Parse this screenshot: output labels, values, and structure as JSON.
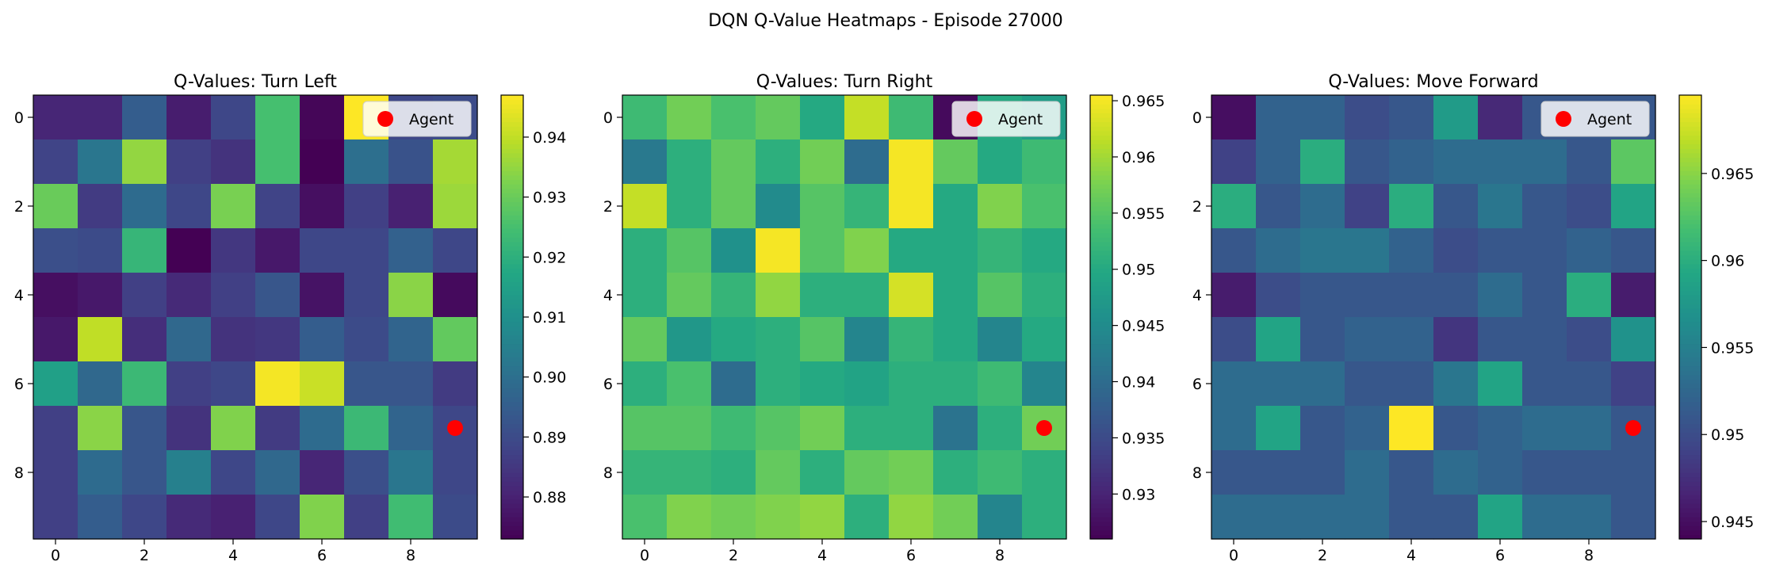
{
  "figure": {
    "suptitle": "DQN Q-Value Heatmaps - Episode 27000"
  },
  "chart_data": [
    {
      "type": "heatmap",
      "title": "Q-Values: Turn Left",
      "x_ticks": [
        0,
        2,
        4,
        6,
        8
      ],
      "y_ticks": [
        0,
        2,
        4,
        6,
        8
      ],
      "colormap": "viridis",
      "vmin": 0.873,
      "vmax": 0.947,
      "colorbar_ticks": [
        0.88,
        0.89,
        0.9,
        0.91,
        0.92,
        0.93,
        0.94
      ],
      "legend": {
        "label": "Agent",
        "position": "upper-right"
      },
      "agent": {
        "x": 9,
        "y": 7,
        "color": "#ff0000"
      },
      "values": [
        [
          0.881,
          0.881,
          0.895,
          0.879,
          0.889,
          0.925,
          0.874,
          0.947,
          0.889,
          0.89
        ],
        [
          0.888,
          0.902,
          0.935,
          0.887,
          0.884,
          0.925,
          0.873,
          0.9,
          0.892,
          0.937
        ],
        [
          0.93,
          0.886,
          0.899,
          0.889,
          0.932,
          0.888,
          0.876,
          0.887,
          0.88,
          0.936
        ],
        [
          0.891,
          0.89,
          0.922,
          0.873,
          0.885,
          0.878,
          0.889,
          0.889,
          0.896,
          0.889
        ],
        [
          0.876,
          0.878,
          0.887,
          0.882,
          0.887,
          0.893,
          0.877,
          0.889,
          0.934,
          0.875
        ],
        [
          0.878,
          0.94,
          0.883,
          0.898,
          0.884,
          0.885,
          0.895,
          0.89,
          0.897,
          0.929
        ],
        [
          0.915,
          0.898,
          0.923,
          0.887,
          0.889,
          0.946,
          0.941,
          0.893,
          0.893,
          0.886
        ],
        [
          0.887,
          0.934,
          0.893,
          0.884,
          0.933,
          0.886,
          0.899,
          0.923,
          0.897,
          0.889
        ],
        [
          0.887,
          0.899,
          0.893,
          0.905,
          0.889,
          0.898,
          0.881,
          0.891,
          0.902,
          0.889
        ],
        [
          0.887,
          0.895,
          0.889,
          0.882,
          0.88,
          0.889,
          0.933,
          0.887,
          0.924,
          0.89
        ]
      ]
    },
    {
      "type": "heatmap",
      "title": "Q-Values: Turn Right",
      "x_ticks": [
        0,
        2,
        4,
        6,
        8
      ],
      "y_ticks": [
        0,
        2,
        4,
        6,
        8
      ],
      "colormap": "viridis",
      "vmin": 0.926,
      "vmax": 0.9655,
      "colorbar_ticks": [
        0.93,
        0.935,
        0.94,
        0.945,
        0.95,
        0.955,
        0.96,
        0.965
      ],
      "legend": {
        "label": "Agent",
        "position": "upper-right"
      },
      "agent": {
        "x": 9,
        "y": 7,
        "color": "#ff0000"
      },
      "values": [
        [
          0.953,
          0.957,
          0.954,
          0.956,
          0.95,
          0.962,
          0.953,
          0.927,
          0.95,
          0.948
        ],
        [
          0.942,
          0.951,
          0.956,
          0.951,
          0.957,
          0.94,
          0.965,
          0.956,
          0.95,
          0.953
        ],
        [
          0.962,
          0.951,
          0.956,
          0.945,
          0.955,
          0.952,
          0.965,
          0.95,
          0.958,
          0.954
        ],
        [
          0.951,
          0.955,
          0.946,
          0.965,
          0.955,
          0.958,
          0.95,
          0.95,
          0.952,
          0.95
        ],
        [
          0.951,
          0.956,
          0.952,
          0.959,
          0.951,
          0.951,
          0.963,
          0.95,
          0.955,
          0.951
        ],
        [
          0.956,
          0.947,
          0.95,
          0.951,
          0.955,
          0.944,
          0.952,
          0.95,
          0.944,
          0.95
        ],
        [
          0.951,
          0.954,
          0.94,
          0.951,
          0.95,
          0.949,
          0.951,
          0.951,
          0.953,
          0.944
        ],
        [
          0.955,
          0.955,
          0.953,
          0.955,
          0.957,
          0.951,
          0.951,
          0.941,
          0.951,
          0.957
        ],
        [
          0.952,
          0.952,
          0.951,
          0.956,
          0.951,
          0.956,
          0.957,
          0.951,
          0.953,
          0.951
        ],
        [
          0.954,
          0.958,
          0.957,
          0.958,
          0.959,
          0.951,
          0.959,
          0.957,
          0.944,
          0.951
        ]
      ]
    },
    {
      "type": "heatmap",
      "title": "Q-Values: Move Forward",
      "x_ticks": [
        0,
        2,
        4,
        6,
        8
      ],
      "y_ticks": [
        0,
        2,
        4,
        6,
        8
      ],
      "colormap": "viridis",
      "vmin": 0.944,
      "vmax": 0.9695,
      "colorbar_ticks": [
        0.945,
        0.95,
        0.955,
        0.96,
        0.965
      ],
      "legend": {
        "label": "Agent",
        "position": "upper-right"
      },
      "agent": {
        "x": 9,
        "y": 7,
        "color": "#ff0000"
      },
      "values": [
        [
          0.945,
          0.952,
          0.952,
          0.95,
          0.951,
          0.958,
          0.947,
          0.951,
          0.951,
          0.951
        ],
        [
          0.949,
          0.952,
          0.96,
          0.951,
          0.952,
          0.953,
          0.953,
          0.953,
          0.951,
          0.963
        ],
        [
          0.96,
          0.951,
          0.953,
          0.949,
          0.96,
          0.951,
          0.954,
          0.951,
          0.95,
          0.959
        ],
        [
          0.951,
          0.953,
          0.954,
          0.954,
          0.952,
          0.95,
          0.951,
          0.951,
          0.952,
          0.951
        ],
        [
          0.946,
          0.95,
          0.951,
          0.951,
          0.951,
          0.951,
          0.953,
          0.951,
          0.96,
          0.946
        ],
        [
          0.95,
          0.959,
          0.951,
          0.952,
          0.952,
          0.948,
          0.951,
          0.951,
          0.95,
          0.957
        ],
        [
          0.953,
          0.953,
          0.953,
          0.951,
          0.951,
          0.954,
          0.959,
          0.951,
          0.951,
          0.949
        ],
        [
          0.953,
          0.959,
          0.951,
          0.952,
          0.9695,
          0.951,
          0.952,
          0.953,
          0.953,
          0.951
        ],
        [
          0.951,
          0.951,
          0.951,
          0.953,
          0.951,
          0.953,
          0.952,
          0.951,
          0.951,
          0.951
        ],
        [
          0.953,
          0.953,
          0.953,
          0.953,
          0.951,
          0.951,
          0.959,
          0.953,
          0.953,
          0.951
        ]
      ]
    }
  ]
}
